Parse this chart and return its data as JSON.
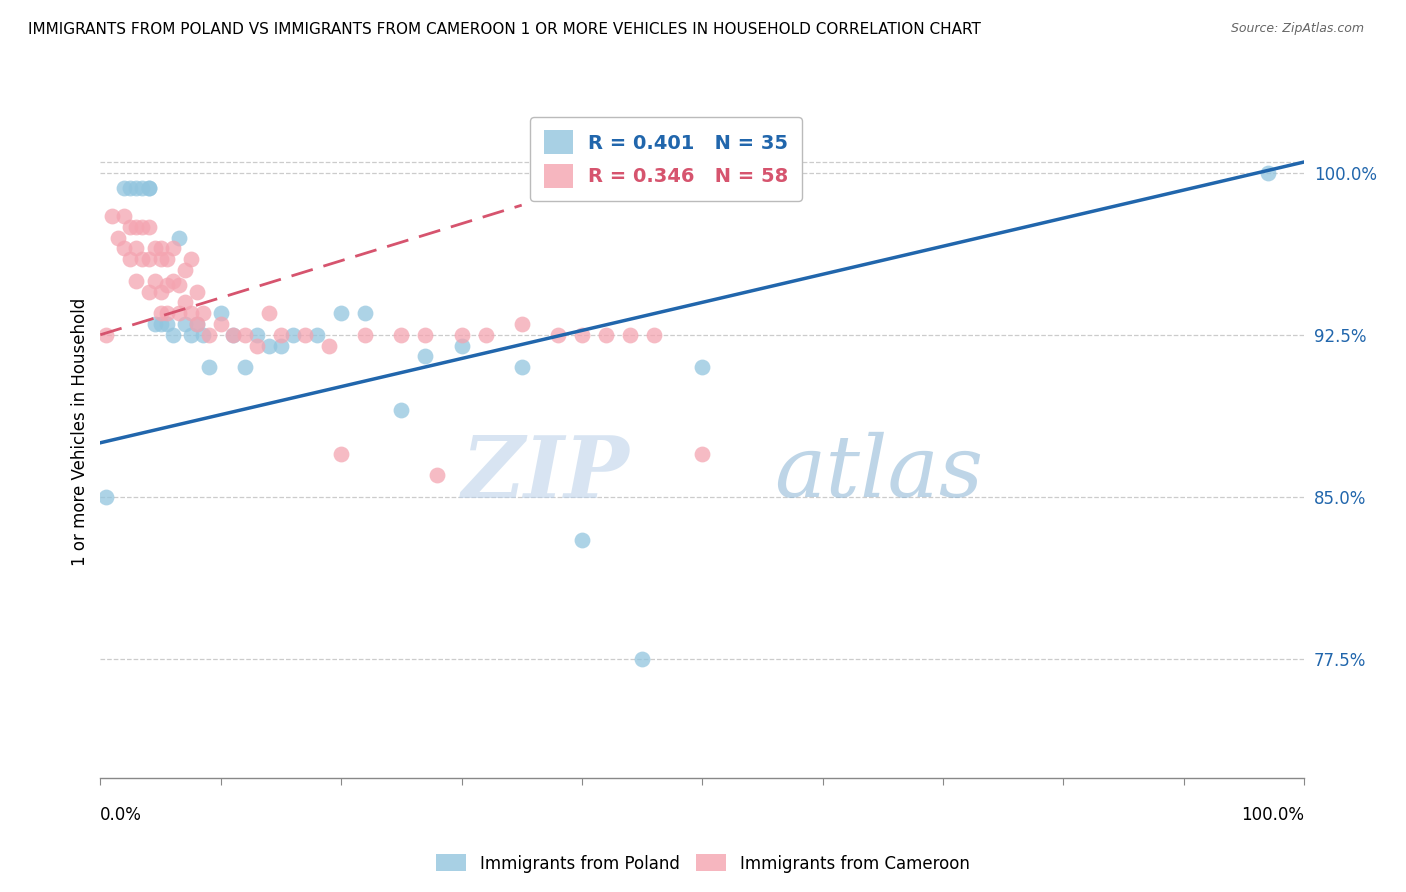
{
  "title": "IMMIGRANTS FROM POLAND VS IMMIGRANTS FROM CAMEROON 1 OR MORE VEHICLES IN HOUSEHOLD CORRELATION CHART",
  "source": "Source: ZipAtlas.com",
  "ylabel": "1 or more Vehicles in Household",
  "ytick_labels": [
    "77.5%",
    "85.0%",
    "92.5%",
    "100.0%"
  ],
  "ytick_values": [
    0.775,
    0.85,
    0.925,
    1.0
  ],
  "xlim": [
    0.0,
    1.0
  ],
  "ylim": [
    0.72,
    1.04
  ],
  "poland_color": "#92c5de",
  "cameroon_color": "#f4a4b0",
  "poland_R": 0.401,
  "poland_N": 35,
  "cameroon_R": 0.346,
  "cameroon_N": 58,
  "poland_line_color": "#2166ac",
  "cameroon_line_color": "#d6546e",
  "watermark_zip": "ZIP",
  "watermark_atlas": "atlas",
  "poland_x": [
    0.005,
    0.02,
    0.025,
    0.03,
    0.035,
    0.04,
    0.04,
    0.045,
    0.05,
    0.055,
    0.06,
    0.065,
    0.07,
    0.075,
    0.08,
    0.085,
    0.09,
    0.1,
    0.11,
    0.12,
    0.13,
    0.14,
    0.15,
    0.16,
    0.18,
    0.2,
    0.22,
    0.25,
    0.27,
    0.3,
    0.35,
    0.4,
    0.45,
    0.5,
    0.97
  ],
  "poland_y": [
    0.85,
    0.993,
    0.993,
    0.993,
    0.993,
    0.993,
    0.993,
    0.93,
    0.93,
    0.93,
    0.925,
    0.97,
    0.93,
    0.925,
    0.93,
    0.925,
    0.91,
    0.935,
    0.925,
    0.91,
    0.925,
    0.92,
    0.92,
    0.925,
    0.925,
    0.935,
    0.935,
    0.89,
    0.915,
    0.92,
    0.91,
    0.83,
    0.775,
    0.91,
    1.0
  ],
  "cameroon_x": [
    0.005,
    0.01,
    0.015,
    0.02,
    0.02,
    0.025,
    0.025,
    0.03,
    0.03,
    0.03,
    0.035,
    0.035,
    0.04,
    0.04,
    0.04,
    0.045,
    0.045,
    0.05,
    0.05,
    0.05,
    0.05,
    0.055,
    0.055,
    0.055,
    0.06,
    0.06,
    0.065,
    0.065,
    0.07,
    0.07,
    0.075,
    0.075,
    0.08,
    0.08,
    0.085,
    0.09,
    0.1,
    0.11,
    0.12,
    0.13,
    0.14,
    0.15,
    0.17,
    0.19,
    0.2,
    0.22,
    0.25,
    0.27,
    0.28,
    0.3,
    0.32,
    0.35,
    0.38,
    0.4,
    0.42,
    0.44,
    0.46,
    0.5
  ],
  "cameroon_y": [
    0.925,
    0.98,
    0.97,
    0.98,
    0.965,
    0.975,
    0.96,
    0.975,
    0.965,
    0.95,
    0.975,
    0.96,
    0.975,
    0.96,
    0.945,
    0.965,
    0.95,
    0.965,
    0.96,
    0.945,
    0.935,
    0.96,
    0.948,
    0.935,
    0.965,
    0.95,
    0.948,
    0.935,
    0.955,
    0.94,
    0.96,
    0.935,
    0.945,
    0.93,
    0.935,
    0.925,
    0.93,
    0.925,
    0.925,
    0.92,
    0.935,
    0.925,
    0.925,
    0.92,
    0.87,
    0.925,
    0.925,
    0.925,
    0.86,
    0.925,
    0.925,
    0.93,
    0.925,
    0.925,
    0.925,
    0.925,
    0.925,
    0.87
  ]
}
